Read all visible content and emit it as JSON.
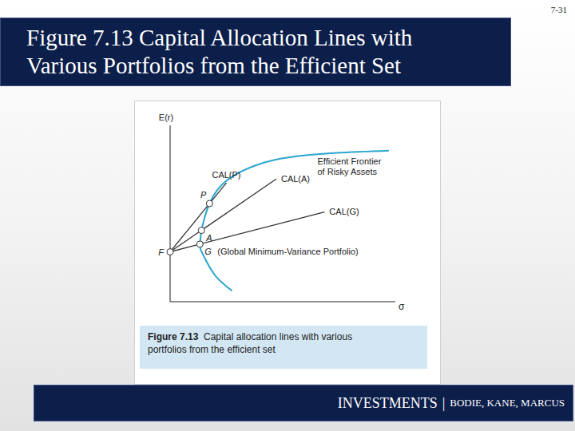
{
  "page_number": "7-31",
  "title": "Figure 7.13 Capital Allocation Lines with\nVarious Portfolios from the Efficient Set",
  "caption": {
    "label": "Figure 7.13",
    "text": "Capital allocation lines with various\nportfolios from the efficient set"
  },
  "footer": [
    "INVESTMENTS",
    "|",
    "BODIE, KANE, MARCUS"
  ],
  "chart_data": {
    "type": "line",
    "x_label": "σ",
    "y_label": "E(r)",
    "xlim": [
      0,
      28
    ],
    "ylim": [
      0,
      23
    ],
    "xticks": [],
    "yticks": [],
    "tick_labels": false,
    "grid": false,
    "series": [
      {
        "name": "Efficient Frontier\nof Risky Assets",
        "color": "#2aa6cf",
        "type": "spline",
        "x": [
          7.7,
          5.7,
          4.5,
          3.8,
          3.7,
          3.8,
          3.9,
          4.3,
          4.9,
          5.9,
          7.7,
          10.7,
          14.7,
          20.7,
          27.2
        ],
        "values": [
          1.4,
          3.3,
          5.3,
          6.8,
          7.5,
          8.5,
          9.3,
          11.0,
          12.8,
          14.6,
          16.3,
          17.8,
          18.8,
          19.4,
          19.7
        ]
      },
      {
        "name": "CAL(P)",
        "color": "#333333",
        "type": "line",
        "x": [
          0,
          7.0
        ],
        "values": [
          6.5,
          15.5
        ]
      },
      {
        "name": "CAL(A)",
        "color": "#333333",
        "type": "line",
        "x": [
          0,
          13.2
        ],
        "values": [
          6.5,
          16.0
        ]
      },
      {
        "name": "CAL(G)",
        "color": "#333333",
        "type": "line",
        "x": [
          0,
          19.2
        ],
        "values": [
          6.5,
          11.7
        ]
      }
    ],
    "points": [
      {
        "label": "F",
        "x": 0,
        "y": 6.5
      },
      {
        "label": "G",
        "x": 3.7,
        "y": 7.5,
        "note": "(Global Minimum-Variance Portfolio)"
      },
      {
        "label": "A",
        "x": 3.9,
        "y": 9.3
      },
      {
        "label": "P",
        "x": 4.9,
        "y": 12.8
      }
    ]
  }
}
